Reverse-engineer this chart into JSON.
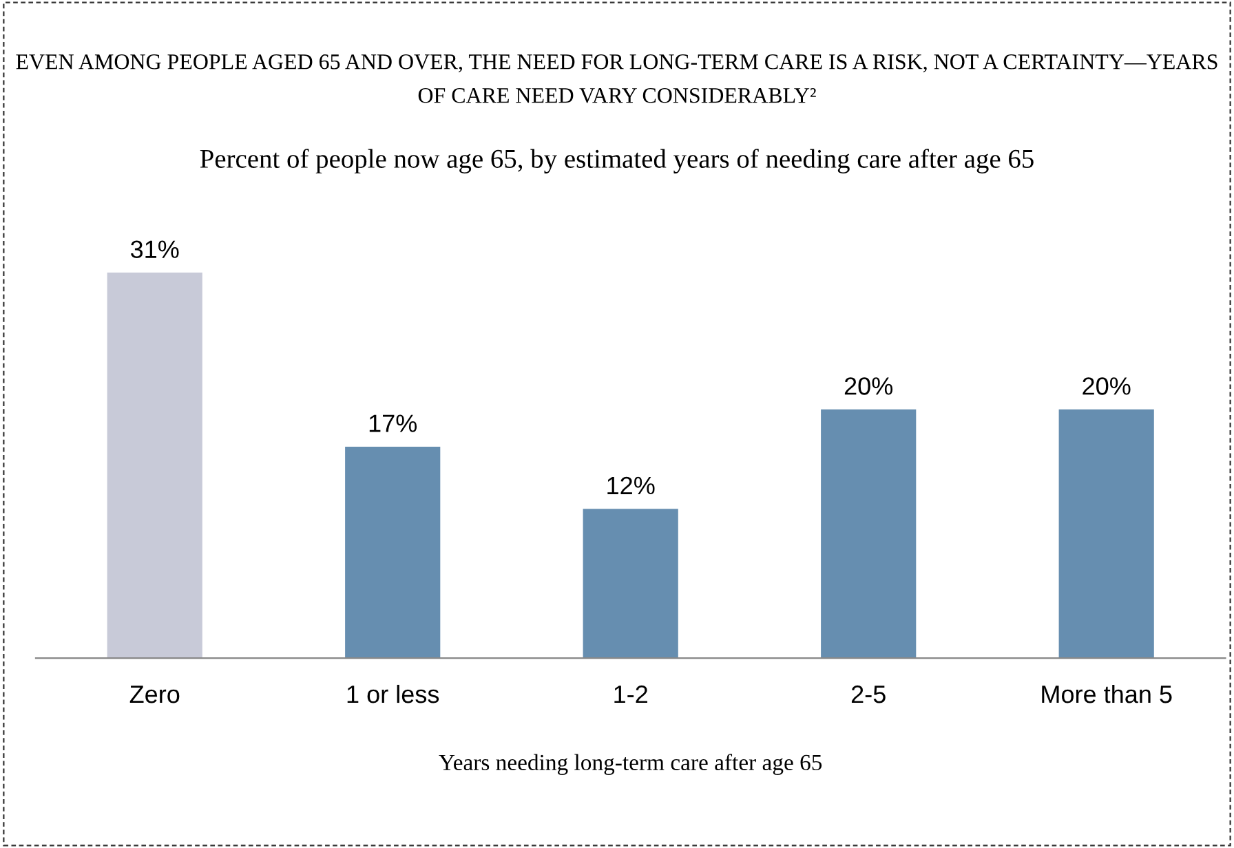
{
  "chart_data": {
    "type": "bar",
    "title": "EVEN AMONG PEOPLE AGED 65 AND OVER, THE NEED FOR LONG-TERM CARE IS A RISK, NOT A CERTAINTY—YEARS OF CARE NEED VARY CONSIDERABLY²",
    "subtitle": "Percent of people now age 65, by estimated years of needing care after age 65",
    "xlabel": "Years needing long-term care after age 65",
    "categories": [
      "Zero",
      "1 or less",
      "1-2",
      "2-5",
      "More than 5"
    ],
    "values": [
      31,
      17,
      12,
      20,
      20
    ],
    "value_labels": [
      "31%",
      "17%",
      "12%",
      "20%",
      "20%"
    ],
    "colors": [
      "#c8cad8",
      "#668eb0",
      "#668eb0",
      "#668eb0",
      "#668eb0"
    ],
    "grid": false,
    "legend": false
  }
}
